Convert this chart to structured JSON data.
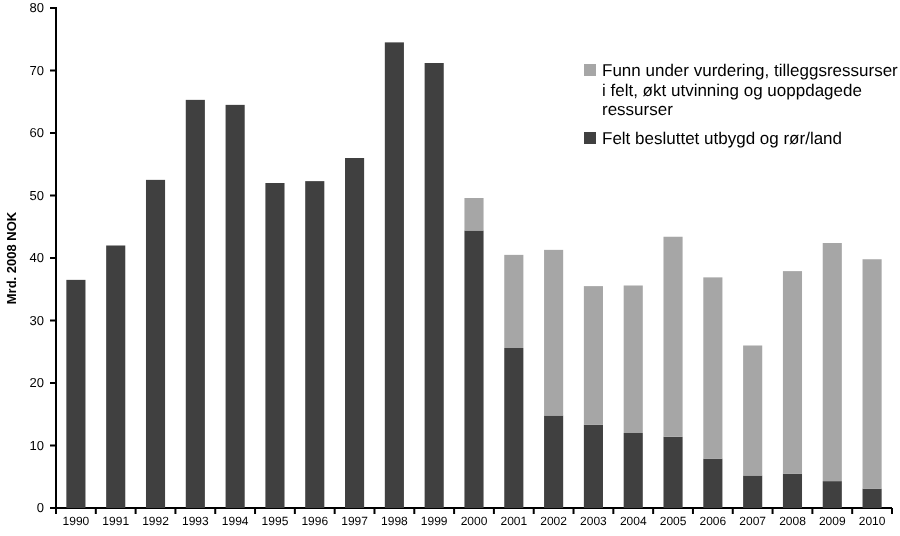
{
  "chart_data": {
    "type": "bar",
    "stacked": true,
    "ylabel": "Mrd. 2008 NOK",
    "categories": [
      "1990",
      "1991",
      "1992",
      "1993",
      "1994",
      "1995",
      "1996",
      "1997",
      "1998",
      "1999",
      "2000",
      "2001",
      "2002",
      "2003",
      "2004",
      "2005",
      "2006",
      "2007",
      "2008",
      "2009",
      "2010"
    ],
    "series": [
      {
        "name": "Felt besluttet utbygd og rør/land",
        "color": "#404040",
        "values": [
          36.5,
          42,
          52.5,
          65.3,
          64.5,
          52,
          52.3,
          56,
          74.5,
          71.2,
          44.4,
          25.6,
          14.8,
          13.3,
          12,
          11.4,
          7.9,
          5.2,
          5.5,
          4.3,
          3.1
        ]
      },
      {
        "name": "Funn under vurdering, tilleggsressurser i felt, økt utvinning og uoppdagede ressurser",
        "color": "#a6a6a6",
        "values": [
          null,
          null,
          null,
          null,
          null,
          null,
          null,
          null,
          null,
          null,
          5.2,
          14.9,
          26.5,
          22.2,
          23.6,
          32,
          29,
          20.8,
          32.4,
          38.1,
          36.7
        ]
      }
    ],
    "ylim": [
      0,
      80
    ],
    "yticks": [
      0,
      10,
      20,
      30,
      40,
      50,
      60,
      70,
      80
    ],
    "grid": false,
    "legend": "top right"
  }
}
